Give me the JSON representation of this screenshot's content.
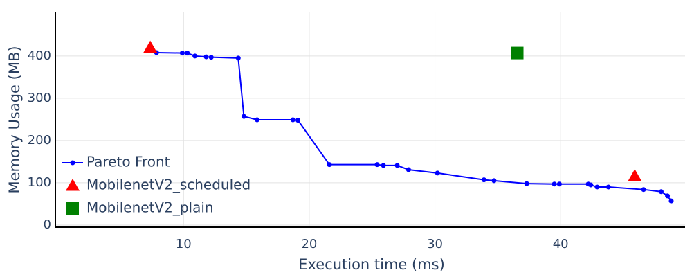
{
  "chart_data": {
    "type": "scatter",
    "x_label": "Execution time (ms)",
    "y_label": "Memory Usage (MB)",
    "xlim": [
      -0.2,
      49.9
    ],
    "ylim": [
      -5,
      503
    ],
    "xticks": [
      10,
      20,
      30,
      40
    ],
    "yticks": [
      0,
      100,
      200,
      300,
      400
    ],
    "grid": true,
    "legend": "lower left",
    "series": [
      {
        "name": "Pareto Front",
        "color": "#0000ff",
        "mode": "lines+markers",
        "marker": "circle",
        "x": [
          7.85,
          9.9,
          10.3,
          10.9,
          11.8,
          12.2,
          14.35,
          14.8,
          15.85,
          18.7,
          19.1,
          21.6,
          25.4,
          25.9,
          27.0,
          27.9,
          30.2,
          33.9,
          34.7,
          37.3,
          39.5,
          39.9,
          42.2,
          42.4,
          42.9,
          43.8,
          46.6,
          48.0,
          48.5,
          48.8
        ],
        "values": [
          408,
          407,
          407,
          400,
          398,
          397,
          395,
          257,
          249,
          249,
          248,
          143,
          143,
          141,
          141,
          131,
          123,
          107,
          105,
          98,
          97,
          97,
          97,
          95,
          90,
          90,
          84,
          79,
          69,
          57
        ]
      },
      {
        "name": "MobilenetV2_scheduled",
        "color": "#ff0000",
        "mode": "markers",
        "marker": "triangle-up",
        "x": [
          7.35,
          45.9
        ],
        "values": [
          420,
          116
        ]
      },
      {
        "name": "MobilenetV2_plain",
        "color": "#008000",
        "mode": "markers",
        "marker": "square",
        "x": [
          36.55
        ],
        "values": [
          407
        ]
      }
    ]
  }
}
